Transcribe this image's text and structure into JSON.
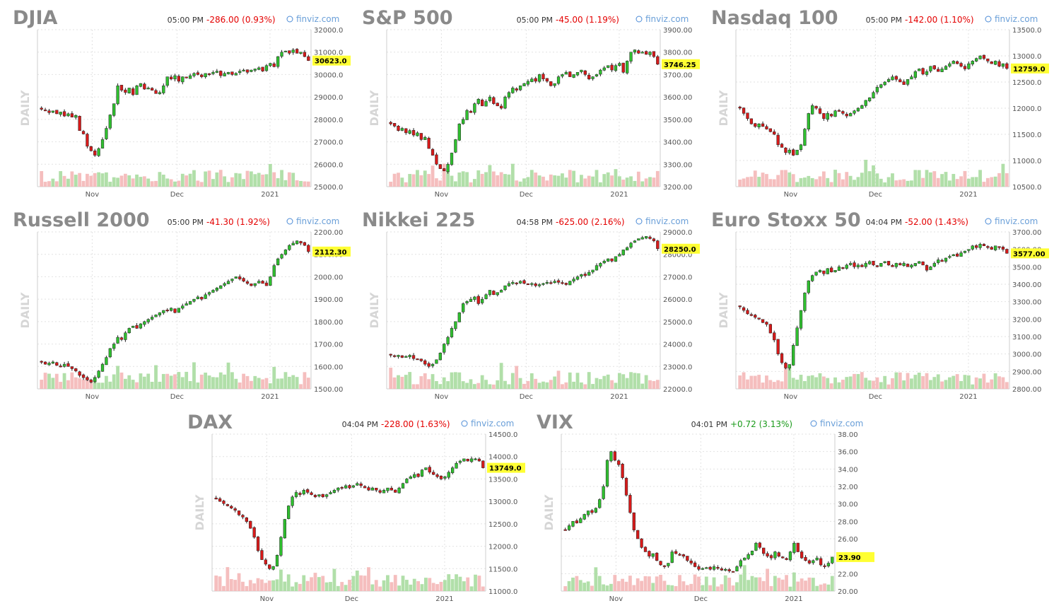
{
  "charts": [
    {
      "type": "candlestick",
      "title": "DJIA",
      "time": "05:00 PM",
      "change": "-286.00 (0.93%)",
      "change_color": "#e40000",
      "brand": "finviz.com",
      "period_label": "DAILY",
      "ylim": [
        25000,
        32000
      ],
      "yticks": [
        "32000.0",
        "31000.0",
        "30000.0",
        "29000.0",
        "28000.0",
        "27000.0",
        "26000.0",
        "25000.0"
      ],
      "xticks": [
        "Nov",
        "Dec",
        "2021"
      ],
      "last_label": "30623.0",
      "last_value": 30623,
      "closes": [
        28450,
        28400,
        28300,
        28380,
        28250,
        28330,
        28150,
        28250,
        28100,
        28180,
        27500,
        27350,
        26800,
        26600,
        26400,
        26700,
        27100,
        27600,
        28200,
        28700,
        29500,
        29300,
        29200,
        29400,
        29100,
        29500,
        29600,
        29350,
        29400,
        29300,
        29150,
        29200,
        29500,
        29900,
        29800,
        29950,
        29700,
        29900,
        29850,
        29950,
        30050,
        30000,
        29900,
        30050,
        30000,
        30100,
        30150,
        29950,
        30050,
        30100,
        30000,
        30050,
        30150,
        30200,
        30100,
        30200,
        30250,
        30300,
        30150,
        30400,
        30500,
        30350,
        30800,
        31000,
        31050,
        30950,
        31100,
        30950,
        31000,
        30800,
        30623
      ]
    },
    {
      "type": "candlestick",
      "title": "S&P 500",
      "time": "05:00 PM",
      "change": "-45.00 (1.19%)",
      "change_color": "#e40000",
      "brand": "finviz.com",
      "period_label": "DAILY",
      "ylim": [
        3200,
        3900
      ],
      "yticks": [
        "3900.00",
        "3800.00",
        "3700.00",
        "3600.00",
        "3500.00",
        "3400.00",
        "3300.00",
        "3200.00"
      ],
      "xticks": [
        "Nov",
        "Dec",
        "2021"
      ],
      "last_label": "3746.25",
      "last_value": 3746.25,
      "closes": [
        3480,
        3470,
        3450,
        3460,
        3440,
        3450,
        3430,
        3440,
        3410,
        3420,
        3370,
        3340,
        3300,
        3280,
        3270,
        3300,
        3350,
        3410,
        3480,
        3500,
        3540,
        3530,
        3570,
        3590,
        3560,
        3580,
        3600,
        3570,
        3560,
        3550,
        3600,
        3620,
        3640,
        3630,
        3650,
        3660,
        3670,
        3680,
        3670,
        3700,
        3680,
        3670,
        3650,
        3660,
        3690,
        3700,
        3710,
        3690,
        3700,
        3710,
        3720,
        3700,
        3680,
        3690,
        3700,
        3720,
        3730,
        3740,
        3720,
        3740,
        3750,
        3710,
        3760,
        3800,
        3810,
        3795,
        3800,
        3790,
        3800,
        3780,
        3746
      ]
    },
    {
      "type": "candlestick",
      "title": "Nasdaq 100",
      "time": "05:00 PM",
      "change": "-142.00 (1.10%)",
      "change_color": "#e40000",
      "brand": "finviz.com",
      "period_label": "DAILY",
      "ylim": [
        10500,
        13500
      ],
      "yticks": [
        "13500.0",
        "13000.0",
        "12500.0",
        "12000.0",
        "11500.0",
        "11000.0",
        "10500.0"
      ],
      "xticks": [
        "Nov",
        "Dec",
        "2021"
      ],
      "last_label": "12759.0",
      "last_value": 12759,
      "closes": [
        12000,
        11900,
        11800,
        11700,
        11650,
        11700,
        11650,
        11600,
        11550,
        11500,
        11300,
        11250,
        11150,
        11200,
        11100,
        11200,
        11300,
        11600,
        11900,
        12050,
        12000,
        11900,
        11800,
        11900,
        11850,
        11950,
        11950,
        11900,
        11850,
        11900,
        11950,
        12000,
        12050,
        12150,
        12200,
        12300,
        12400,
        12450,
        12500,
        12550,
        12600,
        12550,
        12500,
        12450,
        12550,
        12600,
        12700,
        12750,
        12650,
        12700,
        12800,
        12750,
        12700,
        12750,
        12800,
        12850,
        12900,
        12850,
        12800,
        12750,
        12850,
        12900,
        12950,
        13000,
        12950,
        12900,
        12850,
        12900,
        12800,
        12850,
        12759
      ]
    },
    {
      "type": "candlestick",
      "title": "Russell 2000",
      "time": "05:00 PM",
      "change": "-41.30 (1.92%)",
      "change_color": "#e40000",
      "brand": "finviz.com",
      "period_label": "DAILY",
      "ylim": [
        1500,
        2200
      ],
      "yticks": [
        "2200.00",
        "2100.00",
        "2000.00",
        "1900.00",
        "1800.00",
        "1700.00",
        "1600.00",
        "1500.00"
      ],
      "xticks": [
        "Nov",
        "Dec",
        "2021"
      ],
      "last_label": "2112.30",
      "last_value": 2112.3,
      "closes": [
        1620,
        1610,
        1615,
        1620,
        1605,
        1600,
        1610,
        1600,
        1590,
        1580,
        1560,
        1550,
        1540,
        1530,
        1550,
        1580,
        1610,
        1640,
        1680,
        1700,
        1730,
        1720,
        1750,
        1770,
        1780,
        1770,
        1790,
        1800,
        1810,
        1820,
        1830,
        1840,
        1850,
        1850,
        1860,
        1840,
        1860,
        1870,
        1880,
        1890,
        1900,
        1910,
        1900,
        1920,
        1930,
        1940,
        1950,
        1960,
        1970,
        1980,
        1990,
        2000,
        1990,
        1980,
        1970,
        1960,
        1970,
        1980,
        1970,
        1960,
        2000,
        2050,
        2080,
        2100,
        2120,
        2140,
        2150,
        2160,
        2150,
        2140,
        2112
      ]
    },
    {
      "type": "candlestick",
      "title": "Nikkei 225",
      "time": "04:58 PM",
      "change": "-625.00 (2.16%)",
      "change_color": "#e40000",
      "brand": "finviz.com",
      "period_label": "DAILY",
      "ylim": [
        22000,
        29000
      ],
      "yticks": [
        "29000.0",
        "28000.0",
        "27000.0",
        "26000.0",
        "25000.0",
        "24000.0",
        "23000.0",
        "22000.0"
      ],
      "xticks": [
        "Nov",
        "Dec",
        "2021"
      ],
      "last_label": "28250.0",
      "last_value": 28250,
      "closes": [
        23500,
        23450,
        23500,
        23400,
        23450,
        23500,
        23350,
        23300,
        23250,
        23100,
        23000,
        23100,
        23300,
        23600,
        24000,
        24300,
        24700,
        25000,
        25400,
        25800,
        25900,
        26000,
        26100,
        25800,
        26000,
        26200,
        26400,
        26200,
        26300,
        26400,
        26600,
        26700,
        26750,
        26700,
        26800,
        26700,
        26650,
        26700,
        26600,
        26650,
        26700,
        26750,
        26700,
        26800,
        26750,
        26700,
        26650,
        26800,
        26900,
        27000,
        27100,
        27050,
        27200,
        27300,
        27500,
        27600,
        27700,
        27800,
        27700,
        27900,
        28000,
        28200,
        28300,
        28500,
        28600,
        28700,
        28750,
        28800,
        28700,
        28600,
        28250
      ]
    },
    {
      "type": "candlestick",
      "title": "Euro Stoxx 50",
      "time": "04:04 PM",
      "change": "-52.00 (1.43%)",
      "change_color": "#e40000",
      "brand": "finviz.com",
      "period_label": "DAILY",
      "ylim": [
        2800,
        3700
      ],
      "yticks": [
        "3700.00",
        "3600.00",
        "3500.00",
        "3400.00",
        "3300.00",
        "3200.00",
        "3100.00",
        "3000.00",
        "2900.00",
        "2800.00"
      ],
      "xticks": [
        "Nov",
        "Dec",
        "2021"
      ],
      "last_label": "3577.00",
      "last_value": 3577,
      "closes": [
        3270,
        3250,
        3230,
        3220,
        3210,
        3200,
        3180,
        3170,
        3120,
        3080,
        3000,
        2950,
        2920,
        2940,
        3050,
        3150,
        3250,
        3350,
        3420,
        3450,
        3470,
        3480,
        3460,
        3490,
        3470,
        3480,
        3500,
        3490,
        3510,
        3520,
        3500,
        3510,
        3500,
        3520,
        3530,
        3510,
        3500,
        3520,
        3530,
        3510,
        3500,
        3520,
        3510,
        3520,
        3500,
        3510,
        3520,
        3530,
        3510,
        3480,
        3500,
        3520,
        3540,
        3530,
        3550,
        3560,
        3570,
        3560,
        3580,
        3590,
        3600,
        3620,
        3610,
        3630,
        3620,
        3610,
        3600,
        3620,
        3610,
        3600,
        3577
      ]
    },
    {
      "type": "candlestick",
      "title": "DAX",
      "time": "04:04 PM",
      "change": "-228.00 (1.63%)",
      "change_color": "#e40000",
      "brand": "finviz.com",
      "period_label": "DAILY",
      "ylim": [
        11000,
        14500
      ],
      "yticks": [
        "14500.0",
        "14000.0",
        "13500.0",
        "13000.0",
        "12500.0",
        "12000.0",
        "11500.0",
        "11000.0"
      ],
      "xticks": [
        "Nov",
        "Dec",
        "2021"
      ],
      "last_label": "13749.0",
      "last_value": 13749,
      "closes": [
        13050,
        13000,
        12950,
        12900,
        12850,
        12800,
        12700,
        12650,
        12550,
        12400,
        12200,
        11900,
        11700,
        11600,
        11500,
        11550,
        11800,
        12200,
        12600,
        12900,
        13100,
        13200,
        13150,
        13250,
        13200,
        13150,
        13100,
        13150,
        13100,
        13150,
        13200,
        13250,
        13300,
        13300,
        13350,
        13300,
        13350,
        13400,
        13350,
        13300,
        13250,
        13300,
        13250,
        13200,
        13250,
        13300,
        13250,
        13200,
        13300,
        13400,
        13500,
        13550,
        13600,
        13550,
        13700,
        13750,
        13650,
        13600,
        13550,
        13500,
        13550,
        13650,
        13750,
        13850,
        13900,
        13950,
        13900,
        13950,
        13950,
        13900,
        13749
      ]
    },
    {
      "type": "candlestick",
      "title": "VIX",
      "time": "04:01 PM",
      "change": "+0.72 (3.13%)",
      "change_color": "#1a9a1a",
      "brand": "finviz.com",
      "period_label": "DAILY",
      "ylim": [
        20,
        38
      ],
      "yticks": [
        "38.00",
        "36.00",
        "34.00",
        "32.00",
        "30.00",
        "28.00",
        "26.00",
        "24.00",
        "22.00",
        "20.00"
      ],
      "xticks": [
        "Nov",
        "Dec",
        "2021"
      ],
      "last_label": "23.90",
      "last_value": 23.9,
      "closes": [
        27,
        27.5,
        28,
        27.8,
        28.3,
        28.8,
        29.2,
        29,
        29.5,
        30.5,
        32,
        35,
        36,
        35,
        34.5,
        33,
        31,
        29,
        27,
        26,
        25,
        24.5,
        24,
        24.3,
        23.5,
        23,
        22.8,
        23.2,
        24.5,
        24.3,
        24.2,
        24,
        23.5,
        23.2,
        22.8,
        22.5,
        22.6,
        22.7,
        22.5,
        22.8,
        22.6,
        22.4,
        22.5,
        22.3,
        22.2,
        22.8,
        23.5,
        23.8,
        24.2,
        24.6,
        25.5,
        25,
        24.3,
        24,
        23.8,
        24.5,
        24,
        23.8,
        23.6,
        24.5,
        25.5,
        24.5,
        23.8,
        23.5,
        23.2,
        23.5,
        23.8,
        23,
        22.8,
        23.2,
        23.9
      ]
    }
  ]
}
